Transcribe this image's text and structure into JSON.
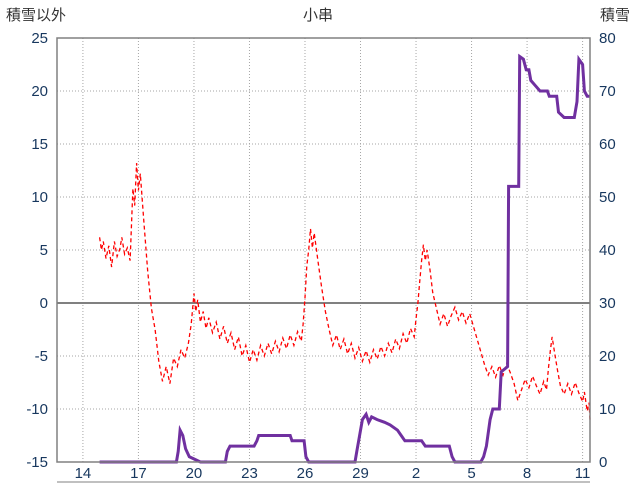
{
  "header": {
    "left_axis_title": "積雪以外",
    "chart_title": "小串",
    "right_axis_title": "積雪"
  },
  "chart_data": {
    "type": "line",
    "title": "小串",
    "x_axis": {
      "domain": [
        -1.4,
        27.4
      ],
      "ticks": [
        {
          "t": 0,
          "label": "14"
        },
        {
          "t": 3,
          "label": "17"
        },
        {
          "t": 6,
          "label": "20"
        },
        {
          "t": 9,
          "label": "23"
        },
        {
          "t": 12,
          "label": "26"
        },
        {
          "t": 15,
          "label": "29"
        },
        {
          "t": 18,
          "label": "2"
        },
        {
          "t": 21,
          "label": "5"
        },
        {
          "t": 24,
          "label": "8"
        },
        {
          "t": 27,
          "label": "11"
        }
      ]
    },
    "left_axis": {
      "title": "積雪以外",
      "range": [
        -15,
        25
      ],
      "ticks": [
        25,
        20,
        15,
        10,
        5,
        0,
        -5,
        -10,
        -15
      ]
    },
    "right_axis": {
      "title": "積雪",
      "range": [
        0,
        80
      ],
      "ticks": [
        80,
        70,
        60,
        50,
        40,
        30,
        20,
        10,
        0
      ]
    },
    "series": [
      {
        "name": "積雪以外",
        "axis": "left",
        "color": "#FF0000",
        "width": 1.3,
        "dash": "4 3",
        "points": [
          [
            0.9,
            6.2
          ],
          [
            1.0,
            5.0
          ],
          [
            1.1,
            5.8
          ],
          [
            1.25,
            4.2
          ],
          [
            1.4,
            5.4
          ],
          [
            1.55,
            3.4
          ],
          [
            1.7,
            5.8
          ],
          [
            1.85,
            4.4
          ],
          [
            2.0,
            5.1
          ],
          [
            2.1,
            6.2
          ],
          [
            2.25,
            4.6
          ],
          [
            2.4,
            5.2
          ],
          [
            2.55,
            4.0
          ],
          [
            2.7,
            10.8
          ],
          [
            2.8,
            9.2
          ],
          [
            2.9,
            13.2
          ],
          [
            3.0,
            10.6
          ],
          [
            3.1,
            12.2
          ],
          [
            3.3,
            7.5
          ],
          [
            3.5,
            3.0
          ],
          [
            3.7,
            -0.5
          ],
          [
            3.9,
            -2.5
          ],
          [
            4.1,
            -5.5
          ],
          [
            4.3,
            -7.4
          ],
          [
            4.5,
            -6.0
          ],
          [
            4.7,
            -7.6
          ],
          [
            4.9,
            -5.2
          ],
          [
            5.1,
            -6.0
          ],
          [
            5.3,
            -4.4
          ],
          [
            5.5,
            -5.2
          ],
          [
            5.7,
            -3.8
          ],
          [
            5.85,
            -2.0
          ],
          [
            6.0,
            0.9
          ],
          [
            6.1,
            -0.8
          ],
          [
            6.2,
            0.3
          ],
          [
            6.35,
            -1.8
          ],
          [
            6.5,
            -0.8
          ],
          [
            6.65,
            -2.4
          ],
          [
            6.8,
            -1.4
          ],
          [
            7.0,
            -2.8
          ],
          [
            7.2,
            -1.8
          ],
          [
            7.4,
            -3.4
          ],
          [
            7.6,
            -2.2
          ],
          [
            7.8,
            -3.8
          ],
          [
            8.0,
            -2.8
          ],
          [
            8.2,
            -4.4
          ],
          [
            8.4,
            -3.2
          ],
          [
            8.6,
            -5.0
          ],
          [
            8.8,
            -4.0
          ],
          [
            9.0,
            -5.6
          ],
          [
            9.2,
            -4.4
          ],
          [
            9.4,
            -5.4
          ],
          [
            9.6,
            -4.0
          ],
          [
            9.8,
            -5.0
          ],
          [
            10.0,
            -3.8
          ],
          [
            10.2,
            -4.8
          ],
          [
            10.4,
            -3.6
          ],
          [
            10.6,
            -4.6
          ],
          [
            10.8,
            -3.3
          ],
          [
            11.0,
            -4.3
          ],
          [
            11.2,
            -3.0
          ],
          [
            11.4,
            -4.0
          ],
          [
            11.6,
            -2.7
          ],
          [
            11.8,
            -3.6
          ],
          [
            11.9,
            -2.0
          ],
          [
            12.0,
            0.5
          ],
          [
            12.1,
            3.5
          ],
          [
            12.2,
            5.0
          ],
          [
            12.3,
            7.0
          ],
          [
            12.4,
            5.2
          ],
          [
            12.5,
            6.6
          ],
          [
            12.7,
            4.0
          ],
          [
            12.9,
            1.5
          ],
          [
            13.1,
            -0.8
          ],
          [
            13.3,
            -2.5
          ],
          [
            13.5,
            -4.0
          ],
          [
            13.7,
            -3.0
          ],
          [
            13.9,
            -4.4
          ],
          [
            14.1,
            -3.4
          ],
          [
            14.3,
            -4.8
          ],
          [
            14.5,
            -3.8
          ],
          [
            14.7,
            -5.2
          ],
          [
            14.9,
            -4.2
          ],
          [
            15.1,
            -5.5
          ],
          [
            15.3,
            -4.5
          ],
          [
            15.5,
            -5.6
          ],
          [
            15.7,
            -4.4
          ],
          [
            15.9,
            -5.3
          ],
          [
            16.1,
            -4.1
          ],
          [
            16.3,
            -5.0
          ],
          [
            16.5,
            -3.8
          ],
          [
            16.7,
            -4.7
          ],
          [
            16.9,
            -3.4
          ],
          [
            17.1,
            -4.3
          ],
          [
            17.3,
            -2.9
          ],
          [
            17.5,
            -3.8
          ],
          [
            17.7,
            -2.4
          ],
          [
            17.9,
            -3.2
          ],
          [
            18.0,
            -1.5
          ],
          [
            18.1,
            0.0
          ],
          [
            18.2,
            2.0
          ],
          [
            18.3,
            4.0
          ],
          [
            18.4,
            5.5
          ],
          [
            18.5,
            4.0
          ],
          [
            18.6,
            5.0
          ],
          [
            18.75,
            3.2
          ],
          [
            18.9,
            1.0
          ],
          [
            19.1,
            -0.5
          ],
          [
            19.3,
            -2.0
          ],
          [
            19.5,
            -1.0
          ],
          [
            19.7,
            -2.2
          ],
          [
            19.9,
            -1.2
          ],
          [
            20.1,
            -0.4
          ],
          [
            20.3,
            -1.6
          ],
          [
            20.5,
            -0.8
          ],
          [
            20.7,
            -1.9
          ],
          [
            20.9,
            -1.0
          ],
          [
            21.1,
            -2.2
          ],
          [
            21.3,
            -3.4
          ],
          [
            21.5,
            -4.6
          ],
          [
            21.7,
            -5.8
          ],
          [
            21.9,
            -6.8
          ],
          [
            22.1,
            -6.0
          ],
          [
            22.3,
            -7.0
          ],
          [
            22.5,
            -5.9
          ],
          [
            22.7,
            -6.8
          ],
          [
            22.9,
            -5.7
          ],
          [
            23.1,
            -6.6
          ],
          [
            23.3,
            -7.6
          ],
          [
            23.5,
            -9.2
          ],
          [
            23.7,
            -8.2
          ],
          [
            23.9,
            -7.2
          ],
          [
            24.1,
            -8.0
          ],
          [
            24.3,
            -6.9
          ],
          [
            24.5,
            -7.8
          ],
          [
            24.7,
            -8.6
          ],
          [
            24.9,
            -7.4
          ],
          [
            25.05,
            -8.2
          ],
          [
            25.15,
            -6.2
          ],
          [
            25.25,
            -4.6
          ],
          [
            25.35,
            -3.2
          ],
          [
            25.5,
            -4.8
          ],
          [
            25.65,
            -6.4
          ],
          [
            25.8,
            -7.8
          ],
          [
            26.0,
            -8.6
          ],
          [
            26.2,
            -7.6
          ],
          [
            26.4,
            -8.6
          ],
          [
            26.6,
            -7.5
          ],
          [
            26.8,
            -8.5
          ],
          [
            27.0,
            -9.3
          ],
          [
            27.1,
            -8.4
          ],
          [
            27.25,
            -10.2
          ],
          [
            27.35,
            -9.4
          ],
          [
            27.4,
            -11.0
          ]
        ]
      },
      {
        "name": "積雪",
        "axis": "right",
        "color": "#7030A0",
        "width": 3,
        "dash": "",
        "points": [
          [
            0.9,
            0
          ],
          [
            5.05,
            0
          ],
          [
            5.15,
            2
          ],
          [
            5.25,
            6
          ],
          [
            5.4,
            5
          ],
          [
            5.55,
            2.5
          ],
          [
            5.75,
            1
          ],
          [
            6.05,
            0.5
          ],
          [
            6.35,
            0
          ],
          [
            7.7,
            0
          ],
          [
            7.8,
            2
          ],
          [
            7.95,
            3
          ],
          [
            9.25,
            3
          ],
          [
            9.4,
            4
          ],
          [
            9.5,
            5
          ],
          [
            11.2,
            5
          ],
          [
            11.3,
            4
          ],
          [
            11.95,
            4
          ],
          [
            12.05,
            1
          ],
          [
            12.2,
            0
          ],
          [
            14.7,
            0
          ],
          [
            14.8,
            2
          ],
          [
            14.95,
            5
          ],
          [
            15.1,
            8
          ],
          [
            15.3,
            9
          ],
          [
            15.45,
            7.5
          ],
          [
            15.6,
            8.5
          ],
          [
            15.9,
            8
          ],
          [
            16.3,
            7.5
          ],
          [
            16.6,
            7
          ],
          [
            17.0,
            6
          ],
          [
            17.2,
            5
          ],
          [
            17.4,
            4
          ],
          [
            18.3,
            4
          ],
          [
            18.5,
            3
          ],
          [
            19.8,
            3
          ],
          [
            19.95,
            1
          ],
          [
            20.1,
            0
          ],
          [
            21.5,
            0
          ],
          [
            21.65,
            1
          ],
          [
            21.8,
            3
          ],
          [
            22.0,
            8
          ],
          [
            22.15,
            10
          ],
          [
            22.5,
            10
          ],
          [
            22.6,
            17
          ],
          [
            22.95,
            18
          ],
          [
            23.0,
            52
          ],
          [
            23.55,
            52
          ],
          [
            23.6,
            76.5
          ],
          [
            23.8,
            76
          ],
          [
            23.95,
            74
          ],
          [
            24.1,
            74
          ],
          [
            24.2,
            72
          ],
          [
            24.45,
            71
          ],
          [
            24.7,
            70
          ],
          [
            25.1,
            70
          ],
          [
            25.2,
            69
          ],
          [
            25.6,
            69
          ],
          [
            25.7,
            66
          ],
          [
            26.0,
            65
          ],
          [
            26.55,
            65
          ],
          [
            26.7,
            68
          ],
          [
            26.8,
            76
          ],
          [
            27.0,
            75
          ],
          [
            27.1,
            70
          ],
          [
            27.25,
            69
          ],
          [
            27.4,
            69
          ]
        ]
      }
    ],
    "styles": {
      "background": "#ffffff",
      "grid_color": "#a6a6a6",
      "border_color": "#808080",
      "zero_line_color": "#808080",
      "tick_label_color": "#17375E",
      "header_color": "#333333"
    }
  }
}
